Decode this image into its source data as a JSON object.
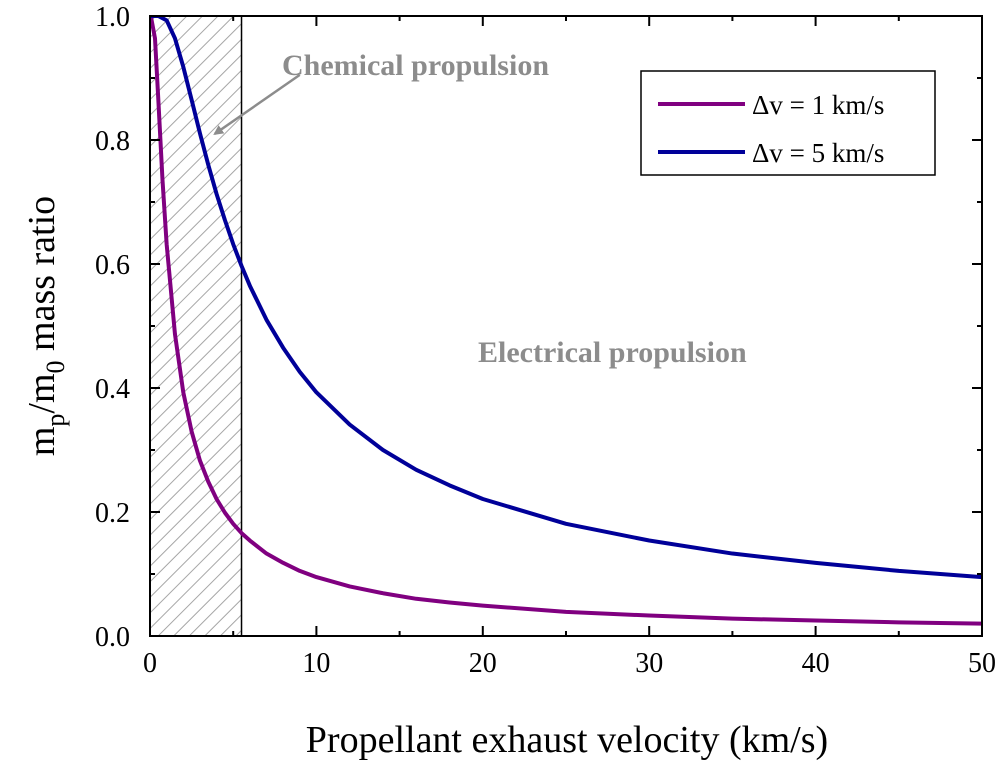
{
  "chart_data": {
    "type": "line",
    "xlabel": "Propellant exhaust velocity (km/s)",
    "ylabel": {
      "base1": "m",
      "sub1": "p",
      "sep": "/m",
      "sub2": "0",
      "rest": " mass ratio"
    },
    "xlim": [
      0,
      50
    ],
    "ylim": [
      0,
      1
    ],
    "x_ticks": [
      0,
      10,
      20,
      30,
      40,
      50
    ],
    "x_tick_labels": [
      "0",
      "10",
      "20",
      "30",
      "40",
      "50"
    ],
    "y_ticks": [
      0,
      0.2,
      0.4,
      0.6,
      0.8,
      1.0
    ],
    "y_tick_labels": [
      "0.0",
      "0.2",
      "0.4",
      "0.6",
      "0.8",
      "1.0"
    ],
    "grid": false,
    "legend_position": "top-right",
    "series": [
      {
        "name": "Δv = 1 km/s",
        "color": "#800080",
        "delta_v": 1,
        "x": [
          0.05,
          0.3,
          0.5,
          0.75,
          1,
          1.5,
          2,
          2.5,
          3,
          3.5,
          4,
          4.5,
          5,
          5.5,
          6,
          7,
          8,
          9,
          10,
          12,
          14,
          16,
          18,
          20,
          25,
          30,
          35,
          40,
          45,
          50
        ],
        "y": [
          1.0,
          0.964,
          0.865,
          0.736,
          0.632,
          0.487,
          0.393,
          0.33,
          0.283,
          0.249,
          0.221,
          0.199,
          0.181,
          0.166,
          0.154,
          0.133,
          0.118,
          0.105,
          0.095,
          0.08,
          0.069,
          0.06,
          0.054,
          0.049,
          0.039,
          0.033,
          0.028,
          0.025,
          0.022,
          0.02
        ]
      },
      {
        "name": "Δv = 5 km/s",
        "color": "#000099",
        "delta_v": 5,
        "x": [
          0.05,
          0.5,
          1,
          1.5,
          2,
          2.5,
          3,
          3.5,
          4,
          4.5,
          5,
          5.5,
          6,
          7,
          8,
          9,
          10,
          12,
          14,
          16,
          18,
          20,
          25,
          30,
          35,
          40,
          45,
          50
        ],
        "y": [
          1.0,
          1.0,
          0.993,
          0.964,
          0.918,
          0.865,
          0.811,
          0.76,
          0.713,
          0.671,
          0.632,
          0.597,
          0.565,
          0.51,
          0.465,
          0.426,
          0.393,
          0.341,
          0.3,
          0.268,
          0.243,
          0.221,
          0.181,
          0.154,
          0.133,
          0.118,
          0.105,
          0.095
        ]
      }
    ],
    "shaded_region": {
      "x": [
        0,
        5.5
      ],
      "pattern": "hatched"
    },
    "annotations": {
      "chemical": "Chemical propulsion",
      "electrical": "Electrical propulsion"
    },
    "annotation_arrow": {
      "from": [
        9,
        0.905
      ],
      "to": [
        3.9,
        0.81
      ]
    }
  }
}
